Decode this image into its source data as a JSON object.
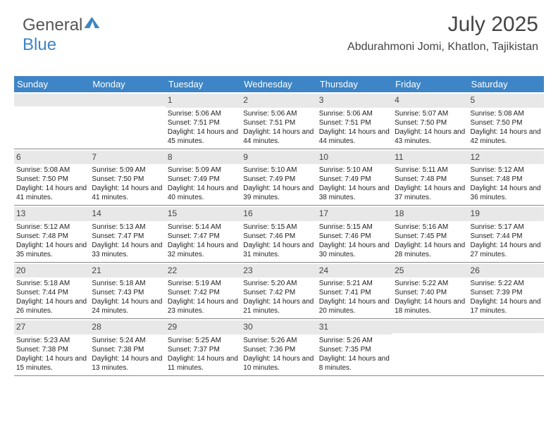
{
  "logo": {
    "text1": "General",
    "text2": "Blue"
  },
  "title": "July 2025",
  "location": "Abdurahmoni Jomi, Khatlon, Tajikistan",
  "colors": {
    "header_bg": "#3d85c6",
    "header_fg": "#ffffff",
    "bar_bg": "#e8e8e8",
    "rule": "#888888"
  },
  "dayNames": [
    "Sunday",
    "Monday",
    "Tuesday",
    "Wednesday",
    "Thursday",
    "Friday",
    "Saturday"
  ],
  "firstWeekday": 2,
  "days": [
    {
      "n": 1,
      "sr": "5:06 AM",
      "ss": "7:51 PM",
      "dl": "14 hours and 45 minutes."
    },
    {
      "n": 2,
      "sr": "5:06 AM",
      "ss": "7:51 PM",
      "dl": "14 hours and 44 minutes."
    },
    {
      "n": 3,
      "sr": "5:06 AM",
      "ss": "7:51 PM",
      "dl": "14 hours and 44 minutes."
    },
    {
      "n": 4,
      "sr": "5:07 AM",
      "ss": "7:50 PM",
      "dl": "14 hours and 43 minutes."
    },
    {
      "n": 5,
      "sr": "5:08 AM",
      "ss": "7:50 PM",
      "dl": "14 hours and 42 minutes."
    },
    {
      "n": 6,
      "sr": "5:08 AM",
      "ss": "7:50 PM",
      "dl": "14 hours and 41 minutes."
    },
    {
      "n": 7,
      "sr": "5:09 AM",
      "ss": "7:50 PM",
      "dl": "14 hours and 41 minutes."
    },
    {
      "n": 8,
      "sr": "5:09 AM",
      "ss": "7:49 PM",
      "dl": "14 hours and 40 minutes."
    },
    {
      "n": 9,
      "sr": "5:10 AM",
      "ss": "7:49 PM",
      "dl": "14 hours and 39 minutes."
    },
    {
      "n": 10,
      "sr": "5:10 AM",
      "ss": "7:49 PM",
      "dl": "14 hours and 38 minutes."
    },
    {
      "n": 11,
      "sr": "5:11 AM",
      "ss": "7:48 PM",
      "dl": "14 hours and 37 minutes."
    },
    {
      "n": 12,
      "sr": "5:12 AM",
      "ss": "7:48 PM",
      "dl": "14 hours and 36 minutes."
    },
    {
      "n": 13,
      "sr": "5:12 AM",
      "ss": "7:48 PM",
      "dl": "14 hours and 35 minutes."
    },
    {
      "n": 14,
      "sr": "5:13 AM",
      "ss": "7:47 PM",
      "dl": "14 hours and 33 minutes."
    },
    {
      "n": 15,
      "sr": "5:14 AM",
      "ss": "7:47 PM",
      "dl": "14 hours and 32 minutes."
    },
    {
      "n": 16,
      "sr": "5:15 AM",
      "ss": "7:46 PM",
      "dl": "14 hours and 31 minutes."
    },
    {
      "n": 17,
      "sr": "5:15 AM",
      "ss": "7:46 PM",
      "dl": "14 hours and 30 minutes."
    },
    {
      "n": 18,
      "sr": "5:16 AM",
      "ss": "7:45 PM",
      "dl": "14 hours and 28 minutes."
    },
    {
      "n": 19,
      "sr": "5:17 AM",
      "ss": "7:44 PM",
      "dl": "14 hours and 27 minutes."
    },
    {
      "n": 20,
      "sr": "5:18 AM",
      "ss": "7:44 PM",
      "dl": "14 hours and 26 minutes."
    },
    {
      "n": 21,
      "sr": "5:18 AM",
      "ss": "7:43 PM",
      "dl": "14 hours and 24 minutes."
    },
    {
      "n": 22,
      "sr": "5:19 AM",
      "ss": "7:42 PM",
      "dl": "14 hours and 23 minutes."
    },
    {
      "n": 23,
      "sr": "5:20 AM",
      "ss": "7:42 PM",
      "dl": "14 hours and 21 minutes."
    },
    {
      "n": 24,
      "sr": "5:21 AM",
      "ss": "7:41 PM",
      "dl": "14 hours and 20 minutes."
    },
    {
      "n": 25,
      "sr": "5:22 AM",
      "ss": "7:40 PM",
      "dl": "14 hours and 18 minutes."
    },
    {
      "n": 26,
      "sr": "5:22 AM",
      "ss": "7:39 PM",
      "dl": "14 hours and 17 minutes."
    },
    {
      "n": 27,
      "sr": "5:23 AM",
      "ss": "7:38 PM",
      "dl": "14 hours and 15 minutes."
    },
    {
      "n": 28,
      "sr": "5:24 AM",
      "ss": "7:38 PM",
      "dl": "14 hours and 13 minutes."
    },
    {
      "n": 29,
      "sr": "5:25 AM",
      "ss": "7:37 PM",
      "dl": "14 hours and 11 minutes."
    },
    {
      "n": 30,
      "sr": "5:26 AM",
      "ss": "7:36 PM",
      "dl": "14 hours and 10 minutes."
    },
    {
      "n": 31,
      "sr": "5:26 AM",
      "ss": "7:35 PM",
      "dl": "14 hours and 8 minutes."
    }
  ],
  "labels": {
    "sunrise": "Sunrise:",
    "sunset": "Sunset:",
    "daylight": "Daylight:"
  }
}
